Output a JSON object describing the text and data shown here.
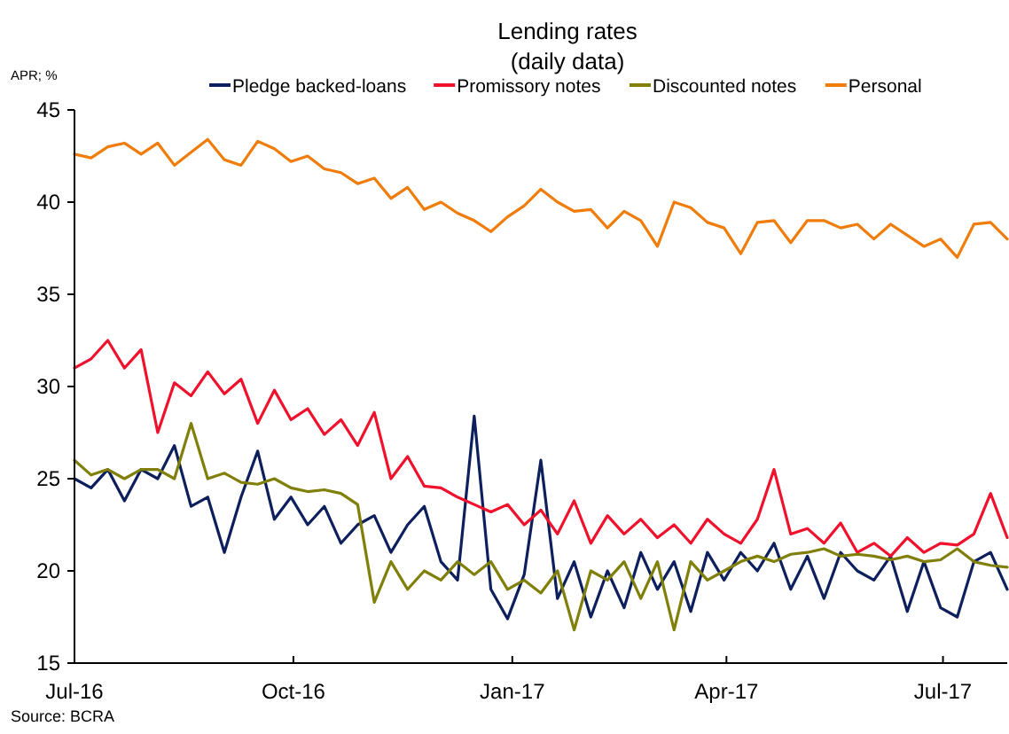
{
  "chart_data": {
    "type": "line",
    "title": "Lending rates",
    "subtitle": "(daily data)",
    "ylabel": "APR; %",
    "annotations": [
      "Source: BCRA"
    ],
    "x": [
      "2016-07-01",
      "2016-07-08",
      "2016-07-15",
      "2016-07-22",
      "2016-07-29",
      "2016-08-05",
      "2016-08-12",
      "2016-08-19",
      "2016-08-26",
      "2016-09-02",
      "2016-09-09",
      "2016-09-16",
      "2016-09-23",
      "2016-09-30",
      "2016-10-07",
      "2016-10-14",
      "2016-10-21",
      "2016-10-28",
      "2016-11-04",
      "2016-11-11",
      "2016-11-18",
      "2016-11-25",
      "2016-12-02",
      "2016-12-09",
      "2016-12-16",
      "2016-12-23",
      "2016-12-30",
      "2017-01-06",
      "2017-01-13",
      "2017-01-20",
      "2017-01-27",
      "2017-02-03",
      "2017-02-10",
      "2017-02-17",
      "2017-02-24",
      "2017-03-03",
      "2017-03-10",
      "2017-03-17",
      "2017-03-24",
      "2017-03-31",
      "2017-04-07",
      "2017-04-14",
      "2017-04-21",
      "2017-04-28",
      "2017-05-05",
      "2017-05-12",
      "2017-05-19",
      "2017-05-26",
      "2017-06-02",
      "2017-06-09",
      "2017-06-16",
      "2017-06-23",
      "2017-06-30",
      "2017-07-07",
      "2017-07-14",
      "2017-07-21",
      "2017-07-28"
    ],
    "series": [
      {
        "name": "Pledge backed-loans",
        "color": "#0d1f5c",
        "values": [
          25,
          24.5,
          25.5,
          23.8,
          25.5,
          25,
          26.8,
          23.5,
          24,
          21,
          24,
          26.5,
          22.8,
          24,
          22.5,
          23.5,
          21.5,
          22.5,
          23,
          21,
          22.5,
          23.5,
          20.5,
          19.5,
          28.4,
          19,
          17.4,
          19.8,
          26,
          18.5,
          20.5,
          17.5,
          20,
          18,
          21,
          19,
          20.5,
          17.8,
          21,
          19.5,
          21,
          20,
          21.5,
          19,
          20.8,
          18.5,
          21,
          20,
          19.5,
          20.8,
          17.8,
          20.5,
          18,
          17.5,
          20.5,
          21,
          19
        ]
      },
      {
        "name": "Promissory notes",
        "color": "#f0122d",
        "values": [
          31,
          31.5,
          32.5,
          31,
          32,
          27.5,
          30.2,
          29.5,
          30.8,
          29.6,
          30.4,
          28,
          29.8,
          28.2,
          28.8,
          27.4,
          28.2,
          26.8,
          28.6,
          25,
          26.2,
          24.6,
          24.5,
          24,
          23.6,
          23.2,
          23.6,
          22.5,
          23.3,
          22,
          23.8,
          21.5,
          23,
          22,
          22.8,
          21.8,
          22.5,
          21.5,
          22.8,
          22,
          21.5,
          22.8,
          25.5,
          22,
          22.3,
          21.5,
          22.6,
          21,
          21.5,
          20.8,
          21.8,
          21,
          21.5,
          21.4,
          22,
          24.2,
          21.8
        ]
      },
      {
        "name": "Discounted notes",
        "color": "#7f7f0a",
        "values": [
          26,
          25.2,
          25.5,
          25,
          25.5,
          25.5,
          25,
          28,
          25,
          25.3,
          24.8,
          24.7,
          25,
          24.5,
          24.3,
          24.4,
          24.2,
          23.6,
          18.3,
          20.5,
          19,
          20,
          19.5,
          20.5,
          19.8,
          20.5,
          19,
          19.5,
          18.8,
          20,
          16.8,
          20,
          19.5,
          20.5,
          18.5,
          20.5,
          16.8,
          20.5,
          19.5,
          20,
          20.5,
          20.8,
          20.5,
          20.9,
          21,
          21.2,
          20.8,
          20.9,
          20.8,
          20.6,
          20.8,
          20.5,
          20.6,
          21.2,
          20.5,
          20.3,
          20.2
        ]
      },
      {
        "name": "Personal",
        "color": "#f07c0a",
        "values": [
          42.6,
          42.4,
          43,
          43.2,
          42.6,
          43.2,
          42,
          42.7,
          43.4,
          42.3,
          42,
          43.3,
          42.9,
          42.2,
          42.5,
          41.8,
          41.6,
          41,
          41.3,
          40.2,
          40.8,
          39.6,
          40,
          39.4,
          39,
          38.4,
          39.2,
          39.8,
          40.7,
          40,
          39.5,
          39.6,
          38.6,
          39.5,
          39,
          37.6,
          40,
          39.7,
          38.9,
          38.6,
          37.2,
          38.9,
          39,
          37.8,
          39,
          39,
          38.6,
          38.8,
          38,
          38.8,
          38.2,
          37.6,
          38,
          37,
          38.8,
          38.9,
          38
        ]
      }
    ],
    "xlim": [
      "2016-07-01",
      "2017-07-28"
    ],
    "xticks": [
      {
        "value": "2016-07-01",
        "label": "Jul-16"
      },
      {
        "value": "2016-10-01",
        "label": "Oct-16"
      },
      {
        "value": "2017-01-01",
        "label": "Jan-17"
      },
      {
        "value": "2017-04-01",
        "label": "Apr-17"
      },
      {
        "value": "2017-07-01",
        "label": "Jul-17"
      }
    ],
    "ylim": [
      15,
      45
    ],
    "yticks": [
      15,
      20,
      25,
      30,
      35,
      40,
      45
    ],
    "grid": false,
    "legend": "top",
    "line_style": "solid",
    "marker": "none"
  }
}
